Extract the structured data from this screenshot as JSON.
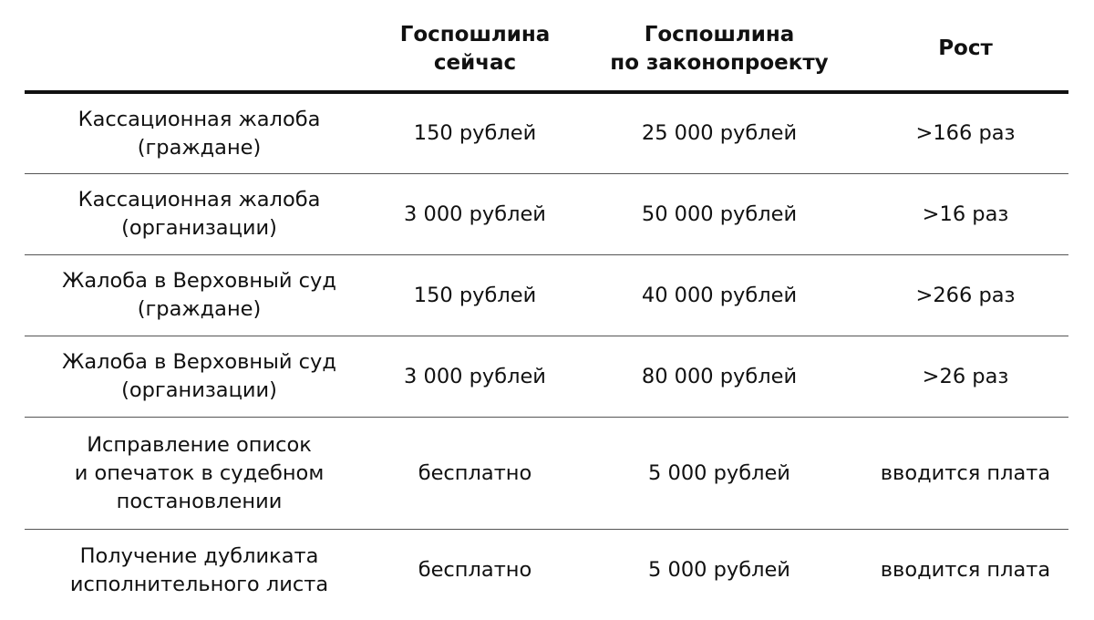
{
  "headers": [
    "",
    "Госпошлина\nсейчас",
    "Госпошлина\nпо  законопроекту",
    "Рост"
  ],
  "rows": [
    {
      "item": "Кассационная жалоба\n(граждане)",
      "current": "150 рублей",
      "proposed": "25 000 рублей",
      "growth": ">166 раз"
    },
    {
      "item": "Кассационная жалоба\n(организации)",
      "current": "3 000 рублей",
      "proposed": "50 000 рублей",
      "growth": ">16 раз"
    },
    {
      "item": "Жалоба в Верховный суд\n(граждане)",
      "current": "150 рублей",
      "proposed": "40 000 рублей",
      "growth": ">266 раз"
    },
    {
      "item": "Жалоба в Верховный суд\n(организации)",
      "current": "3 000 рублей",
      "proposed": "80 000 рублей",
      "growth": ">26 раз"
    },
    {
      "item": "Исправление описок\nи опечаток в судебном\nпостановлении",
      "current": "бесплатно",
      "proposed": "5 000 рублей",
      "growth": "вводится плата"
    },
    {
      "item": "Получение дубликата\nисполнительного листа",
      "current": "бесплатно",
      "proposed": "5 000 рублей",
      "growth": "вводится плата"
    }
  ]
}
